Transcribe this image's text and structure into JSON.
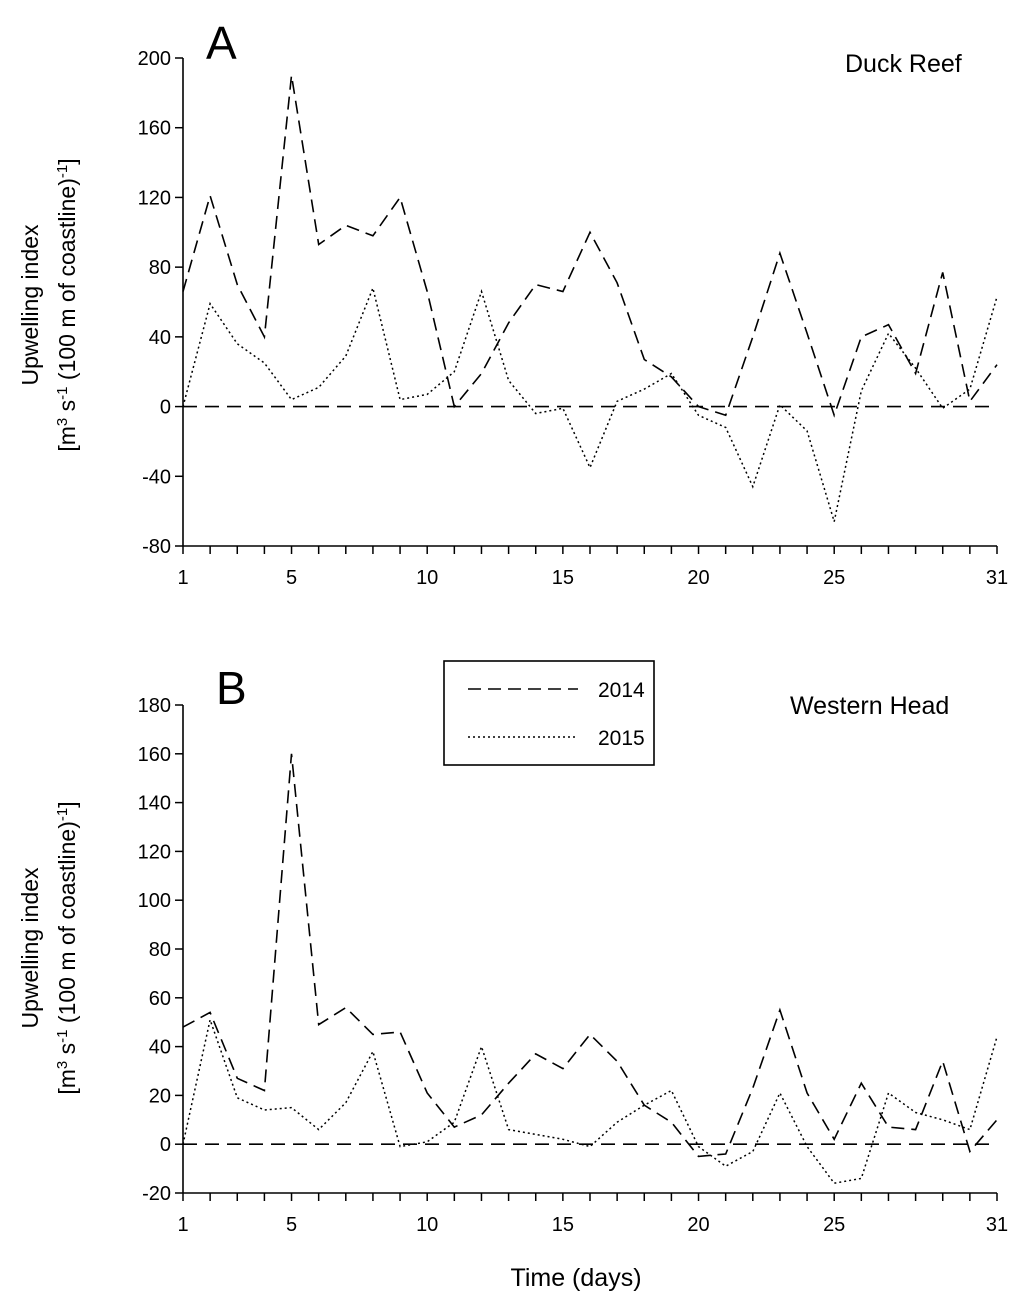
{
  "chart_data": [
    {
      "type": "line",
      "panel_letter": "A",
      "site_label": "Duck Reef",
      "ylabel_line1": "Upwelling index",
      "ylabel_line2": {
        "p1": "[m",
        "sup1": "3",
        "p2": " s",
        "sup2": "-1",
        "p3": " (100 m of coastline)",
        "sup3": "-1",
        "p4": "]"
      },
      "xlim": [
        1,
        31
      ],
      "ylim": [
        -80,
        200
      ],
      "x_ticks": [
        1,
        5,
        10,
        15,
        20,
        25,
        31
      ],
      "y_ticks": [
        -80,
        -40,
        0,
        40,
        80,
        120,
        160,
        200
      ],
      "x_ticks_unlabeled": [
        2,
        3,
        4,
        6,
        7,
        8,
        9,
        11,
        12,
        13,
        14,
        16,
        17,
        18,
        19,
        21,
        22,
        23,
        24,
        26,
        27,
        28,
        29,
        30
      ],
      "zero_line": true,
      "x": [
        1,
        2,
        3,
        4,
        5,
        6,
        7,
        8,
        9,
        10,
        11,
        12,
        13,
        14,
        15,
        16,
        17,
        18,
        19,
        20,
        21,
        22,
        23,
        24,
        25,
        26,
        27,
        28,
        29,
        30,
        31
      ],
      "series": [
        {
          "name": "2014",
          "style": "dashed",
          "values": [
            66,
            121,
            70,
            40,
            190,
            93,
            104,
            98,
            120,
            66,
            0,
            19,
            48,
            70,
            66,
            100,
            71,
            27,
            17,
            0,
            -5,
            40,
            88,
            42,
            -5,
            40,
            47,
            19,
            77,
            3,
            24
          ]
        },
        {
          "name": "2015",
          "style": "dotted",
          "values": [
            0,
            59,
            36,
            25,
            4,
            11,
            29,
            68,
            4,
            7,
            20,
            66,
            15,
            -4,
            -1,
            -35,
            3,
            10,
            19,
            -5,
            -12,
            -46,
            1,
            -14,
            -66,
            9,
            42,
            22,
            -1,
            10,
            63
          ]
        }
      ]
    },
    {
      "type": "line",
      "panel_letter": "B",
      "site_label": "Western Head",
      "ylabel_line1": "Upwelling index",
      "ylabel_line2": {
        "p1": "[m",
        "sup1": "3",
        "p2": " s",
        "sup2": "-1",
        "p3": " (100 m of coastline)",
        "sup3": "-1",
        "p4": "]"
      },
      "xlabel": "Time (days)",
      "xlim": [
        1,
        31
      ],
      "ylim": [
        -20,
        180
      ],
      "x_ticks": [
        1,
        5,
        10,
        15,
        20,
        25,
        31
      ],
      "y_ticks": [
        -20,
        0,
        20,
        40,
        60,
        80,
        100,
        120,
        140,
        160,
        180
      ],
      "x_ticks_unlabeled": [
        2,
        3,
        4,
        6,
        7,
        8,
        9,
        11,
        12,
        13,
        14,
        16,
        17,
        18,
        19,
        21,
        22,
        23,
        24,
        26,
        27,
        28,
        29,
        30
      ],
      "zero_line": true,
      "legend": {
        "placement": "top-center",
        "entries": [
          {
            "name": "2014",
            "style": "dashed"
          },
          {
            "name": "2015",
            "style": "dotted"
          }
        ]
      },
      "x": [
        1,
        2,
        3,
        4,
        5,
        6,
        7,
        8,
        9,
        10,
        11,
        12,
        13,
        14,
        15,
        16,
        17,
        18,
        19,
        20,
        21,
        22,
        23,
        24,
        25,
        26,
        27,
        28,
        29,
        30,
        31
      ],
      "series": [
        {
          "name": "2014",
          "style": "dashed",
          "values": [
            48,
            54,
            27,
            22,
            160,
            49,
            56,
            45,
            46,
            21,
            7,
            12,
            25,
            37,
            31,
            45,
            34,
            16,
            9,
            -5,
            -4,
            23,
            55,
            21,
            2,
            25,
            7,
            6,
            34,
            -3,
            10
          ]
        },
        {
          "name": "2015",
          "style": "dotted",
          "values": [
            0,
            51,
            19,
            14,
            15,
            6,
            17,
            38,
            -1,
            1,
            9,
            40,
            6,
            4,
            2,
            -1,
            9,
            16,
            22,
            -1,
            -9,
            -3,
            21,
            -1,
            -16,
            -14,
            21,
            13,
            10,
            6,
            44
          ]
        }
      ]
    }
  ]
}
